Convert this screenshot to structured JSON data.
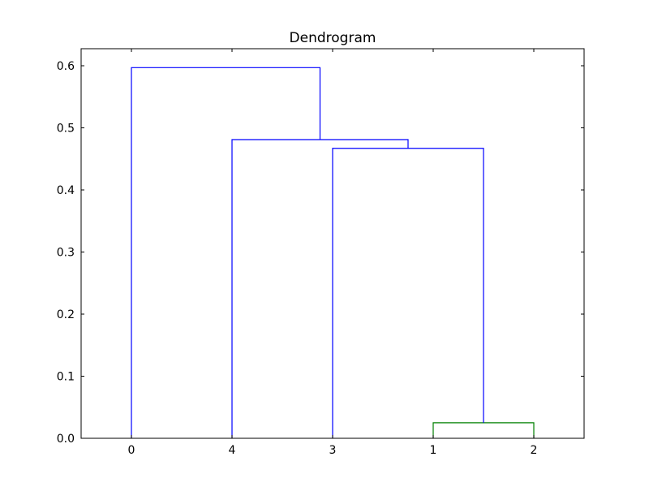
{
  "chart_data": {
    "type": "dendrogram",
    "title": "Dendrogram",
    "xlabel": "",
    "ylabel": "",
    "ylim": [
      0.0,
      0.6
    ],
    "yticks": [
      "0.0",
      "0.1",
      "0.2",
      "0.3",
      "0.4",
      "0.5",
      "0.6"
    ],
    "leaves": [
      "0",
      "4",
      "3",
      "1",
      "2"
    ],
    "links": [
      {
        "left": "1",
        "right": "2",
        "height": 0.025,
        "color": "#008000"
      },
      {
        "left": "3",
        "right": "(1,2)",
        "height": 0.467,
        "color": "#0000ff"
      },
      {
        "left": "4",
        "right": "(3,(1,2))",
        "height": 0.481,
        "color": "#0000ff"
      },
      {
        "left": "0",
        "right": "(4,(3,(1,2)))",
        "height": 0.597,
        "color": "#0000ff"
      }
    ],
    "grid": false
  }
}
